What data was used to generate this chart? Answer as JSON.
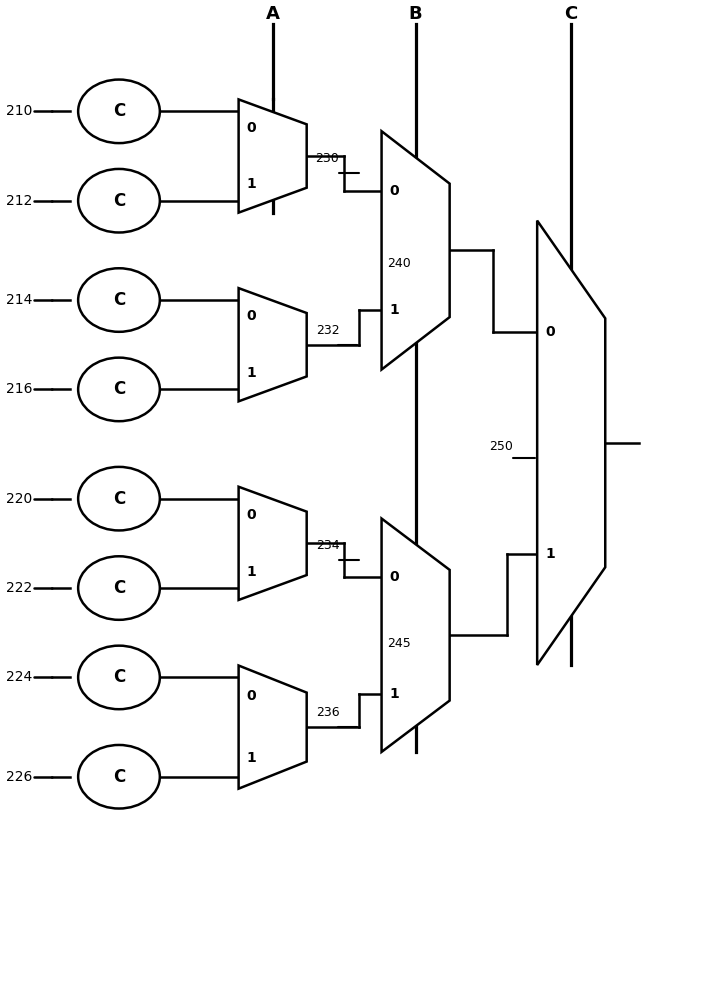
{
  "bg_color": "#ffffff",
  "line_color": "#000000",
  "cell_names": [
    "210",
    "212",
    "214",
    "216",
    "220",
    "222",
    "224",
    "226"
  ],
  "wire_labels": [
    "230",
    "232",
    "234",
    "236"
  ],
  "mux_wire_labels": [
    "240",
    "245",
    "250"
  ],
  "ctrl_labels": [
    "A",
    "B",
    "C"
  ]
}
